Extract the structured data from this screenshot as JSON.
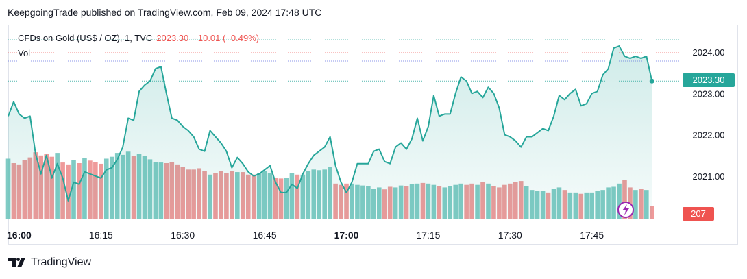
{
  "byline": "KeepgoingTrade published on TradingView.com, Feb 09, 2024 17:48 UTC",
  "legend": {
    "symbol": "CFDs on Gold (US$ / OZ), 1, TVC",
    "price": "2023.30",
    "change": "−10.01 (−0.49%)",
    "volume_label": "Vol"
  },
  "badges": {
    "last_price": "2023.30",
    "last_volume": "207"
  },
  "brand": "TradingView",
  "colors": {
    "line": "#26a69a",
    "up_volume": "#80cbc4",
    "down_volume": "#ef9a9a",
    "down_text": "#ef5350",
    "accent_icon": "#9c27b0"
  },
  "chart_data": {
    "type": "area",
    "x_start": "15:58",
    "interval_minutes": 1,
    "xticks": [
      "16:00",
      "16:15",
      "16:30",
      "16:45",
      "17:00",
      "17:15",
      "17:30",
      "17:45"
    ],
    "yticks": [
      "2021.00",
      "2022.00",
      "2023.00",
      "2024.00"
    ],
    "ylim": [
      2019.95,
      2024.35
    ],
    "values": [
      2022.45,
      2022.8,
      2022.5,
      2022.4,
      2022.45,
      2021.55,
      2021.05,
      2021.5,
      2020.95,
      2021.3,
      2020.95,
      2020.4,
      2020.85,
      2020.8,
      2021.1,
      2021.05,
      2021.0,
      2020.95,
      2021.15,
      2021.2,
      2021.4,
      2021.7,
      2022.4,
      2022.35,
      2023.05,
      2023.2,
      2023.3,
      2023.6,
      2023.65,
      2023.0,
      2022.4,
      2022.35,
      2022.2,
      2022.1,
      2021.95,
      2021.65,
      2021.6,
      2022.1,
      2021.95,
      2021.8,
      2021.6,
      2021.2,
      2021.45,
      2021.3,
      2021.1,
      2021.0,
      2021.05,
      2021.15,
      2021.25,
      2020.85,
      2020.6,
      2020.6,
      2020.8,
      2020.7,
      2021.05,
      2021.3,
      2021.5,
      2021.6,
      2021.7,
      2021.95,
      2021.25,
      2020.85,
      2020.6,
      2020.85,
      2021.3,
      2021.3,
      2021.3,
      2021.6,
      2021.65,
      2021.35,
      2021.3,
      2021.7,
      2021.8,
      2021.65,
      2021.9,
      2022.4,
      2021.85,
      2022.2,
      2022.95,
      2022.45,
      2022.5,
      2022.5,
      2023.0,
      2023.4,
      2023.3,
      2023.0,
      2023.05,
      2022.9,
      2023.15,
      2023.0,
      2022.65,
      2022.0,
      2021.95,
      2021.85,
      2021.7,
      2021.95,
      2021.95,
      2022.05,
      2022.15,
      2022.1,
      2022.45,
      2022.95,
      2022.85,
      2023.0,
      2023.1,
      2022.7,
      2022.75,
      2023.0,
      2023.05,
      2023.45,
      2023.6,
      2024.1,
      2024.15,
      2023.9,
      2023.85,
      2023.9,
      2023.85,
      2023.9,
      2023.3
    ],
    "volume_series": {
      "name": "Vol",
      "values": [
        950,
        880,
        860,
        930,
        970,
        1050,
        1000,
        1020,
        980,
        1040,
        890,
        860,
        930,
        880,
        960,
        920,
        900,
        870,
        950,
        980,
        1040,
        1010,
        1060,
        990,
        1030,
        990,
        940,
        900,
        890,
        880,
        900,
        860,
        820,
        780,
        780,
        800,
        760,
        700,
        720,
        760,
        720,
        760,
        740,
        740,
        700,
        700,
        730,
        760,
        720,
        650,
        640,
        650,
        720,
        700,
        700,
        760,
        780,
        770,
        780,
        820,
        560,
        540,
        560,
        560,
        540,
        530,
        520,
        480,
        500,
        470,
        510,
        500,
        530,
        520,
        550,
        560,
        570,
        560,
        540,
        520,
        500,
        520,
        540,
        560,
        540,
        560,
        540,
        580,
        560,
        520,
        500,
        540,
        560,
        580,
        600,
        520,
        460,
        440,
        440,
        420,
        480,
        500,
        460,
        420,
        420,
        400,
        420,
        420,
        440,
        460,
        500,
        510,
        560,
        620,
        500,
        460,
        480,
        460,
        207
      ],
      "direction": [
        "u",
        "d",
        "d",
        "d",
        "d",
        "d",
        "d",
        "d",
        "d",
        "u",
        "d",
        "d",
        "u",
        "d",
        "u",
        "d",
        "d",
        "d",
        "u",
        "u",
        "u",
        "u",
        "u",
        "d",
        "u",
        "u",
        "u",
        "u",
        "u",
        "d",
        "d",
        "d",
        "d",
        "d",
        "d",
        "d",
        "d",
        "u",
        "d",
        "d",
        "d",
        "d",
        "u",
        "d",
        "d",
        "d",
        "u",
        "u",
        "u",
        "d",
        "d",
        "u",
        "u",
        "d",
        "u",
        "u",
        "u",
        "u",
        "u",
        "u",
        "d",
        "d",
        "d",
        "u",
        "u",
        "u",
        "u",
        "u",
        "u",
        "d",
        "d",
        "u",
        "u",
        "d",
        "u",
        "u",
        "d",
        "u",
        "u",
        "d",
        "u",
        "u",
        "u",
        "u",
        "d",
        "d",
        "u",
        "d",
        "u",
        "d",
        "d",
        "d",
        "d",
        "d",
        "d",
        "u",
        "u",
        "u",
        "u",
        "d",
        "u",
        "u",
        "d",
        "u",
        "u",
        "d",
        "u",
        "u",
        "u",
        "u",
        "u",
        "u",
        "u",
        "d",
        "d",
        "u",
        "d",
        "u",
        "d"
      ],
      "ylim": [
        0,
        2600
      ]
    }
  }
}
